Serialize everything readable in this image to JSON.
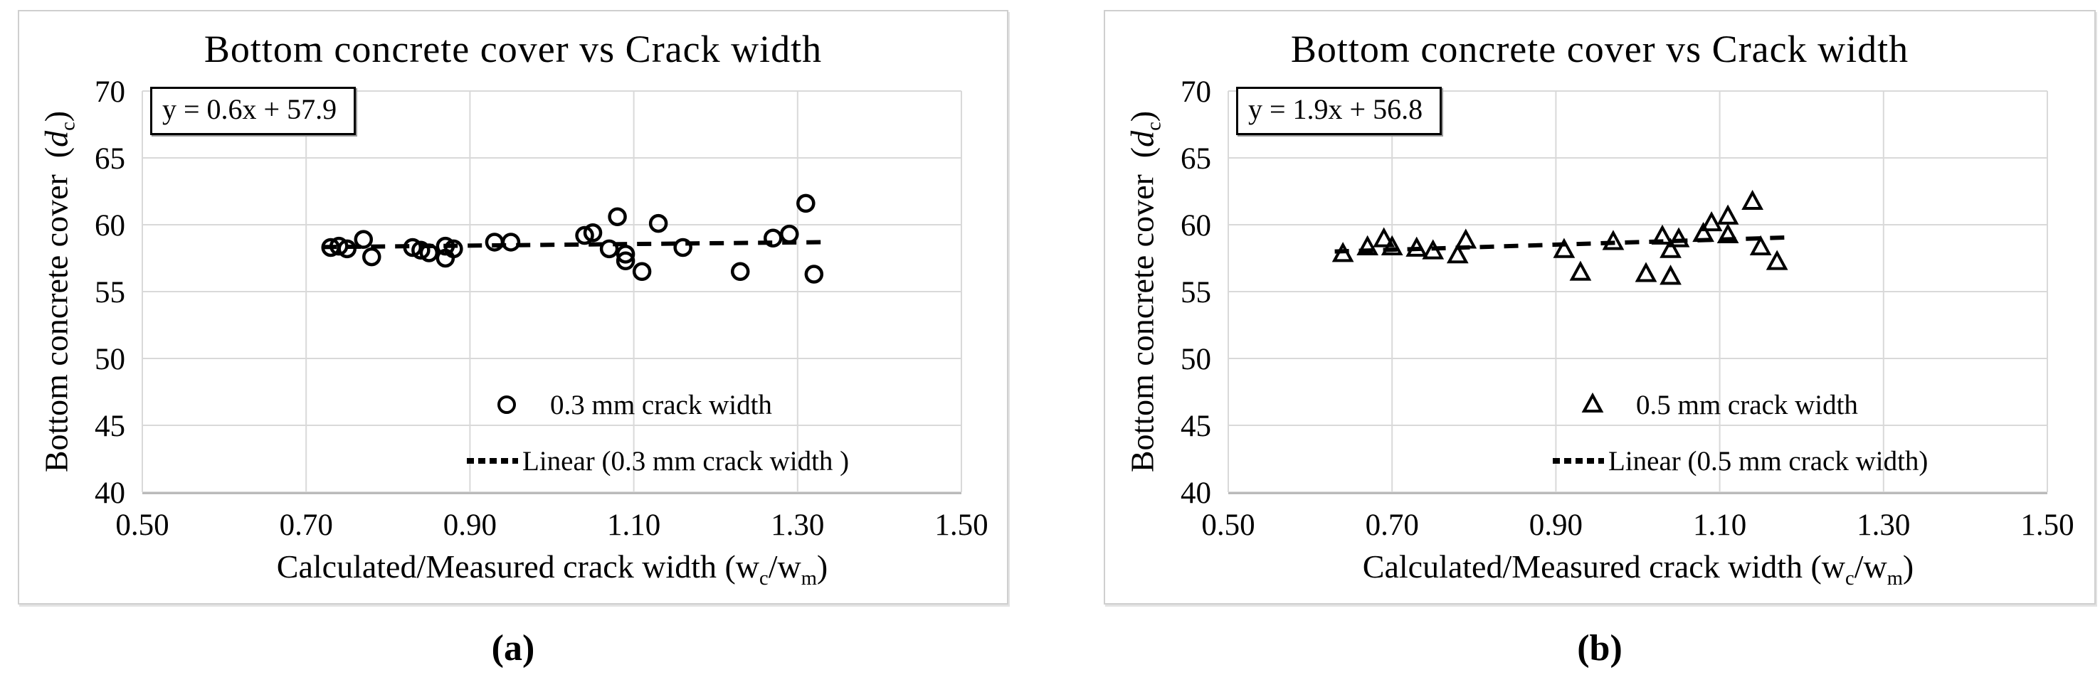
{
  "figure": {
    "background": "#ffffff",
    "panel_border_color": "#cfcfcf",
    "gridline_color": "#d9d9d9",
    "axis_line_color": "#b3b3b3",
    "ink_color": "#000000"
  },
  "chart_data": [
    {
      "id": "a",
      "type": "scatter",
      "title": "Bottom concrete cover vs Crack width",
      "equation": "y = 0.6x + 57.9",
      "caption": "(a)",
      "marker": "circle",
      "xlim": [
        0.5,
        1.5
      ],
      "ylim": [
        40,
        70
      ],
      "x_ticks": [
        "0.50",
        "0.70",
        "0.90",
        "1.10",
        "1.30",
        "1.50"
      ],
      "y_ticks": [
        "70",
        "65",
        "60",
        "55",
        "50",
        "45",
        "40"
      ],
      "xlabel_parts": [
        {
          "t": "Calculated/Measured crack width (w"
        },
        {
          "t": "c",
          "style": "sub"
        },
        {
          "t": "/w"
        },
        {
          "t": "m",
          "style": "sub"
        },
        {
          "t": ")"
        }
      ],
      "ylabel_parts": [
        {
          "t": "Bottom concrete cover  ("
        },
        {
          "t": "d",
          "style": "italic"
        },
        {
          "t": "c",
          "style": "sub"
        },
        {
          "t": ")"
        }
      ],
      "legend": {
        "series_label": "0.3 mm crack width",
        "trend_label": "Linear (0.3 mm crack width )"
      },
      "trend": {
        "slope": 0.6,
        "intercept": 57.9,
        "x_start": 0.72,
        "x_end": 1.33
      },
      "points": [
        [
          0.73,
          58.3
        ],
        [
          0.74,
          58.4
        ],
        [
          0.75,
          58.2
        ],
        [
          0.77,
          58.9
        ],
        [
          0.78,
          57.6
        ],
        [
          0.83,
          58.3
        ],
        [
          0.84,
          58.1
        ],
        [
          0.85,
          57.9
        ],
        [
          0.87,
          58.4
        ],
        [
          0.88,
          58.2
        ],
        [
          0.87,
          57.5
        ],
        [
          0.93,
          58.7
        ],
        [
          0.95,
          58.7
        ],
        [
          1.04,
          59.2
        ],
        [
          1.05,
          59.4
        ],
        [
          1.07,
          58.2
        ],
        [
          1.08,
          60.6
        ],
        [
          1.09,
          57.8
        ],
        [
          1.09,
          57.3
        ],
        [
          1.11,
          56.5
        ],
        [
          1.13,
          60.1
        ],
        [
          1.16,
          58.3
        ],
        [
          1.23,
          56.5
        ],
        [
          1.27,
          59.0
        ],
        [
          1.29,
          59.3
        ],
        [
          1.31,
          61.6
        ],
        [
          1.32,
          56.3
        ]
      ]
    },
    {
      "id": "b",
      "type": "scatter",
      "title": "Bottom concrete cover vs Crack width",
      "equation": "y = 1.9x + 56.8",
      "caption": "(b)",
      "marker": "triangle",
      "xlim": [
        0.5,
        1.5
      ],
      "ylim": [
        40,
        70
      ],
      "x_ticks": [
        "0.50",
        "0.70",
        "0.90",
        "1.10",
        "1.30",
        "1.50"
      ],
      "y_ticks": [
        "70",
        "65",
        "60",
        "55",
        "50",
        "45",
        "40"
      ],
      "xlabel_parts": [
        {
          "t": "Calculated/Measured crack width (w"
        },
        {
          "t": "c",
          "style": "sub"
        },
        {
          "t": "/w"
        },
        {
          "t": "m",
          "style": "sub"
        },
        {
          "t": ")"
        }
      ],
      "ylabel_parts": [
        {
          "t": "Bottom concrete cover  ("
        },
        {
          "t": "d",
          "style": "italic"
        },
        {
          "t": "c",
          "style": "sub"
        },
        {
          "t": ")"
        }
      ],
      "legend": {
        "series_label": "0.5 mm crack width",
        "trend_label": "Linear (0.5 mm crack width)"
      },
      "trend": {
        "slope": 1.9,
        "intercept": 56.8,
        "x_start": 0.63,
        "x_end": 1.18
      },
      "points": [
        [
          0.64,
          57.8
        ],
        [
          0.67,
          58.3
        ],
        [
          0.69,
          58.9
        ],
        [
          0.7,
          58.3
        ],
        [
          0.73,
          58.2
        ],
        [
          0.75,
          58.0
        ],
        [
          0.78,
          57.7
        ],
        [
          0.79,
          58.8
        ],
        [
          0.91,
          58.1
        ],
        [
          0.93,
          56.4
        ],
        [
          0.97,
          58.7
        ],
        [
          1.01,
          56.3
        ],
        [
          1.03,
          59.1
        ],
        [
          1.04,
          58.1
        ],
        [
          1.04,
          56.1
        ],
        [
          1.05,
          58.9
        ],
        [
          1.08,
          59.3
        ],
        [
          1.09,
          60.1
        ],
        [
          1.11,
          59.2
        ],
        [
          1.11,
          60.6
        ],
        [
          1.14,
          61.7
        ],
        [
          1.15,
          58.3
        ],
        [
          1.17,
          57.2
        ]
      ]
    }
  ]
}
